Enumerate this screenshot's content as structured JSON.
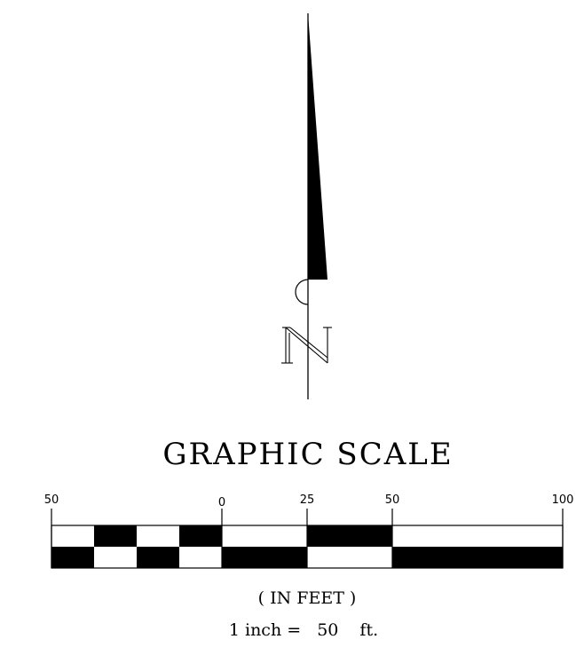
{
  "north_arrow": {
    "letter": "N"
  },
  "scale": {
    "title": "GRAPHIC SCALE",
    "ticks": [
      {
        "label": "50",
        "value": -50
      },
      {
        "label": "0",
        "value": 0
      },
      {
        "label": "25",
        "value": 25
      },
      {
        "label": "50",
        "value": 50
      },
      {
        "label": "100",
        "value": 100
      }
    ],
    "left_divisions": 4,
    "units_label": "( IN FEET )",
    "ratio": {
      "prefix": "1 inch =",
      "value": "50",
      "unit": "ft."
    }
  },
  "colors": {
    "ink": "#000000",
    "paper": "#ffffff"
  }
}
